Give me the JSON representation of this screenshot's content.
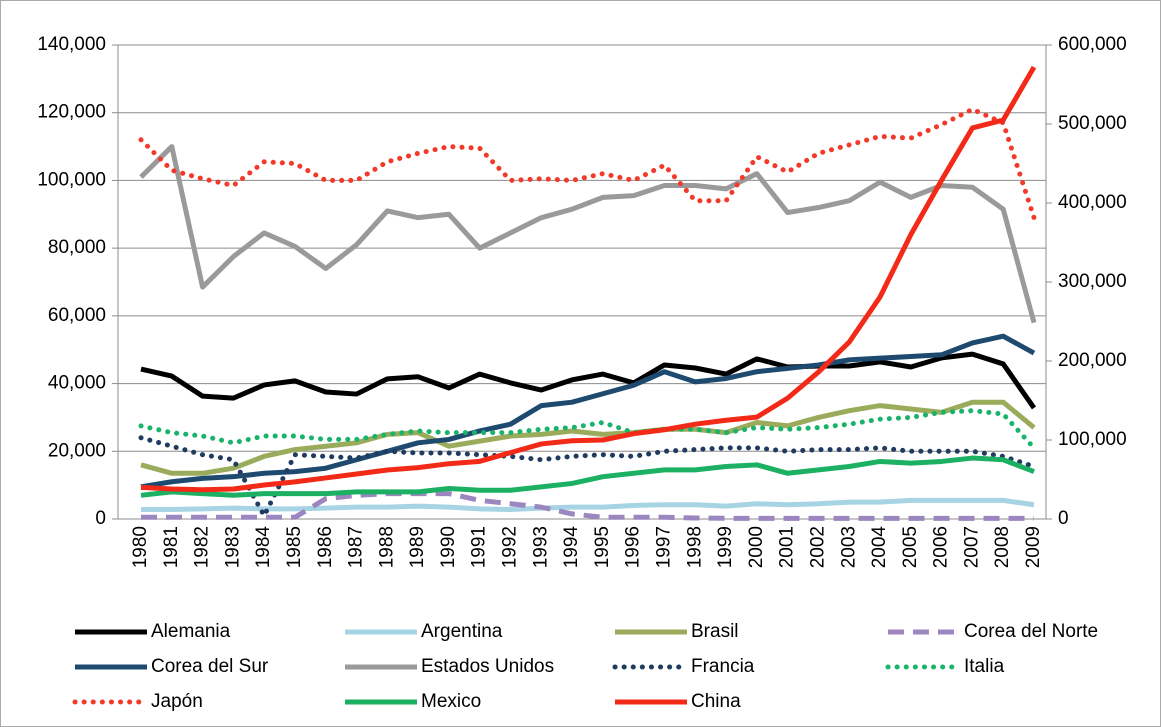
{
  "chart_data": {
    "type": "line",
    "categories": [
      "1980",
      "1981",
      "1982",
      "1983",
      "1984",
      "1985",
      "1986",
      "1987",
      "1988",
      "1989",
      "1990",
      "1991",
      "1992",
      "1993",
      "1994",
      "1995",
      "1996",
      "1997",
      "1998",
      "1999",
      "2000",
      "2001",
      "2002",
      "2003",
      "2004",
      "2005",
      "2006",
      "2007",
      "2008",
      "2009"
    ],
    "ylim": [
      0,
      140000
    ],
    "yticks": [
      {
        "value": 0,
        "label": "0"
      },
      {
        "value": 20000,
        "label": "20,000"
      },
      {
        "value": 40000,
        "label": "40,000"
      },
      {
        "value": 60000,
        "label": "60,000"
      },
      {
        "value": 80000,
        "label": "80,000"
      },
      {
        "value": 100000,
        "label": "100,000"
      },
      {
        "value": 120000,
        "label": "120,000"
      },
      {
        "value": 140000,
        "label": "140,000"
      }
    ],
    "y2lim": [
      0,
      600000
    ],
    "y2ticks": [
      {
        "value": 0,
        "label": "0"
      },
      {
        "value": 100000,
        "label": "100,000"
      },
      {
        "value": 200000,
        "label": "200,000"
      },
      {
        "value": 300000,
        "label": "300,000"
      },
      {
        "value": 400000,
        "label": "400,000"
      },
      {
        "value": 500000,
        "label": "500,000"
      },
      {
        "value": 600000,
        "label": "600,000"
      }
    ],
    "grid": true,
    "legend": "bottom",
    "series": [
      {
        "name": "Alemania",
        "color": "#000000",
        "style": "solid",
        "values": [
          44300,
          42200,
          36300,
          35700,
          39600,
          40800,
          37500,
          36900,
          41400,
          42000,
          38700,
          42800,
          40200,
          38100,
          41100,
          42800,
          40200,
          45500,
          44600,
          42800,
          47300,
          44900,
          45200,
          45200,
          46400,
          44900,
          47600,
          48700,
          45800,
          32800
        ]
      },
      {
        "name": "Argentina",
        "color": "#a6d4e4",
        "style": "solid",
        "values": [
          2800,
          2800,
          3000,
          3200,
          3000,
          3000,
          3200,
          3500,
          3500,
          3800,
          3500,
          3000,
          2800,
          3200,
          3500,
          3500,
          4000,
          4200,
          4200,
          3800,
          4500,
          4200,
          4500,
          5000,
          5000,
          5500,
          5500,
          5500,
          5500,
          4200
        ]
      },
      {
        "name": "Brasil",
        "color": "#9bab5c",
        "style": "solid",
        "values": [
          16000,
          13500,
          13500,
          15000,
          18500,
          20500,
          21500,
          22500,
          25000,
          25500,
          21500,
          23000,
          24500,
          25000,
          26000,
          25000,
          25500,
          26500,
          26500,
          25500,
          28500,
          27500,
          30000,
          32000,
          33500,
          32500,
          31500,
          34500,
          34500,
          27000
        ]
      },
      {
        "name": "Corea del Norte",
        "color": "#9b86bf",
        "style": "dashed",
        "values": [
          500,
          500,
          500,
          500,
          500,
          500,
          6000,
          7000,
          7500,
          7500,
          7500,
          5500,
          4500,
          3500,
          1500,
          500,
          500,
          500,
          300,
          200,
          200,
          200,
          200,
          200,
          200,
          200,
          200,
          200,
          200,
          200
        ]
      },
      {
        "name": "Corea del Sur",
        "color": "#1f4a70",
        "style": "solid",
        "values": [
          9500,
          11000,
          12000,
          12500,
          13500,
          14000,
          15000,
          17500,
          20000,
          22500,
          23500,
          26000,
          28000,
          33500,
          34500,
          37000,
          39500,
          43500,
          40500,
          41500,
          43500,
          44500,
          45500,
          47000,
          47500,
          48000,
          48500,
          52000,
          54000,
          49000
        ]
      },
      {
        "name": "Estados Unidos",
        "color": "#9a9a9a",
        "style": "solid",
        "values": [
          101000,
          110000,
          68500,
          77500,
          84500,
          80500,
          74000,
          81000,
          91000,
          89000,
          90000,
          80000,
          84500,
          89000,
          91500,
          95000,
          95500,
          98500,
          98500,
          97500,
          102000,
          90500,
          92000,
          94000,
          99500,
          95000,
          98500,
          98000,
          91500,
          58000
        ]
      },
      {
        "name": "Francia",
        "color": "#1f3b60",
        "style": "dotted",
        "values": [
          24000,
          21500,
          19000,
          17500,
          1000,
          19000,
          18500,
          18000,
          20000,
          19500,
          19500,
          19000,
          18500,
          17500,
          18500,
          19000,
          18500,
          20000,
          20500,
          21000,
          21000,
          20000,
          20500,
          20500,
          21000,
          20000,
          20000,
          20000,
          18500,
          15500
        ]
      },
      {
        "name": "Italia",
        "color": "#19b36b",
        "style": "dotted",
        "values": [
          27500,
          25500,
          24500,
          22500,
          24500,
          24500,
          23500,
          23500,
          25000,
          26000,
          25500,
          25500,
          25500,
          26500,
          27000,
          28500,
          25500,
          26500,
          26500,
          25500,
          27000,
          26500,
          27000,
          28000,
          29500,
          30000,
          31500,
          32000,
          31000,
          21000
        ]
      },
      {
        "name": "Japón",
        "color": "#f23a2a",
        "style": "dotted",
        "values": [
          112000,
          103000,
          100500,
          98500,
          105500,
          105000,
          100000,
          100000,
          105500,
          108000,
          110000,
          109500,
          100000,
          100500,
          100000,
          102000,
          100000,
          104500,
          94000,
          94000,
          107000,
          102500,
          108000,
          110500,
          113000,
          112500,
          116500,
          121000,
          117000,
          89000
        ]
      },
      {
        "name": "Mexico",
        "color": "#1cb062",
        "style": "solid",
        "values": [
          7000,
          8000,
          7500,
          7000,
          7500,
          7500,
          7500,
          8000,
          8000,
          8000,
          9000,
          8500,
          8500,
          9500,
          10500,
          12500,
          13500,
          14500,
          14500,
          15500,
          16000,
          13500,
          14500,
          15500,
          17000,
          16500,
          17000,
          18000,
          17500,
          14000
        ]
      },
      {
        "name": "China",
        "color": "#f22a17",
        "style": "solid",
        "axis": "y2",
        "values": [
          40000,
          38000,
          37000,
          38000,
          43000,
          47000,
          52000,
          57000,
          62000,
          65000,
          70000,
          73000,
          84000,
          95000,
          99000,
          100000,
          108000,
          113000,
          120000,
          125000,
          129000,
          153000,
          186000,
          224000,
          281000,
          360000,
          429000,
          495000,
          505000,
          572000
        ]
      }
    ]
  }
}
